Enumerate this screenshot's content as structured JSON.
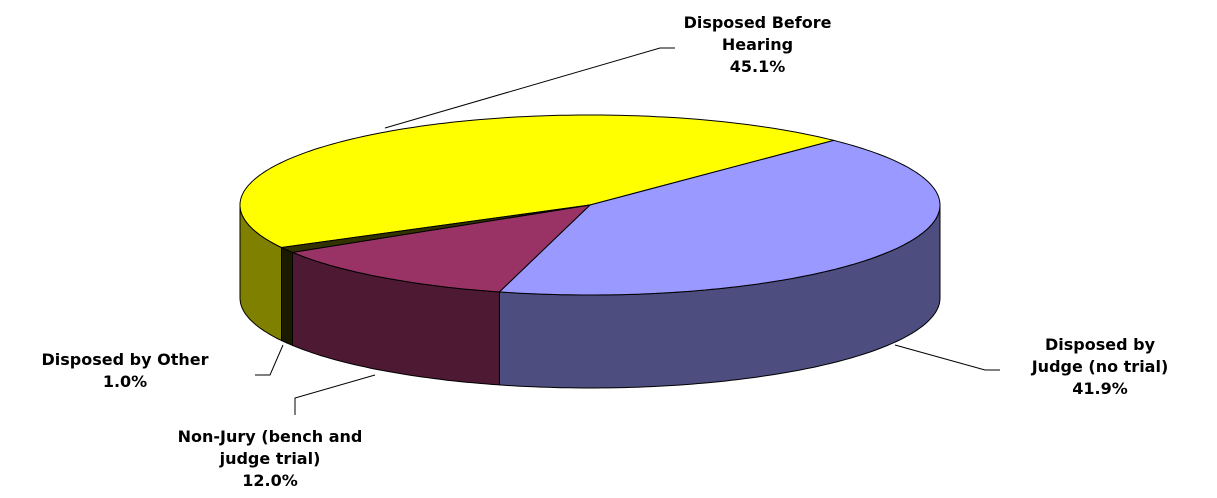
{
  "chart_data": {
    "type": "pie3d",
    "categories": [
      "Disposed Before Hearing",
      "Disposed by Judge (no trial)",
      "Non-Jury (bench and judge trial)",
      "Disposed by Other"
    ],
    "values": [
      45.1,
      41.9,
      12.0,
      1.0
    ],
    "value_labels": [
      "45.1%",
      "41.9%",
      "12.0%",
      "1.0%"
    ],
    "colors": [
      "#ffff00",
      "#9999ff",
      "#993366",
      "#333300"
    ],
    "side_colors": [
      "#808000",
      "#4d4d80",
      "#4d1933",
      "#1a1a00"
    ]
  }
}
